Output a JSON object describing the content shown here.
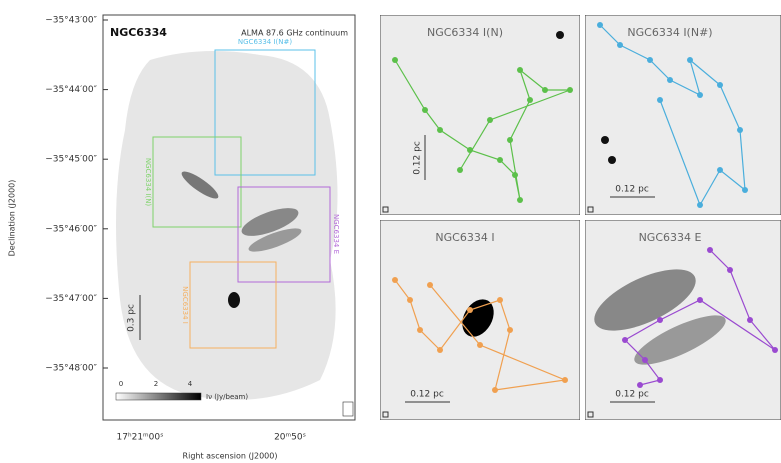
{
  "left_panel": {
    "title": "NGC6334",
    "subtitle": "ALMA 87.6 GHz continuum",
    "region_labels": [
      "NGC6334 I(N#)",
      "NGC6334 I(N)",
      "NGC6334 E",
      "NGC6334 I"
    ],
    "scale_bar": "0.3 pc",
    "colorbar": {
      "ticks": [
        "0",
        "2",
        "4"
      ],
      "label": "Iν (Jy/beam)"
    },
    "dec_ticks": [
      "−35°43′00″",
      "−35°44′00″",
      "−35°45′00″",
      "−35°46′00″",
      "−35°47′00″",
      "−35°48′00″"
    ],
    "ra_ticks": [
      "17ʰ21ᵐ00ˢ",
      "20ᵐ50ˢ"
    ],
    "x_label": "Right ascension (J2000)",
    "y_label": "Declination (J2000)"
  },
  "panels": [
    {
      "title": "NGC6334 I(N)",
      "scale_bar": "0.12 pc"
    },
    {
      "title": "NGC6334 I(N#)",
      "scale_bar": "0.12 pc"
    },
    {
      "title": "NGC6334 I",
      "scale_bar": "0.12 pc"
    },
    {
      "title": "NGC6334 E",
      "scale_bar": "0.12 pc"
    }
  ]
}
